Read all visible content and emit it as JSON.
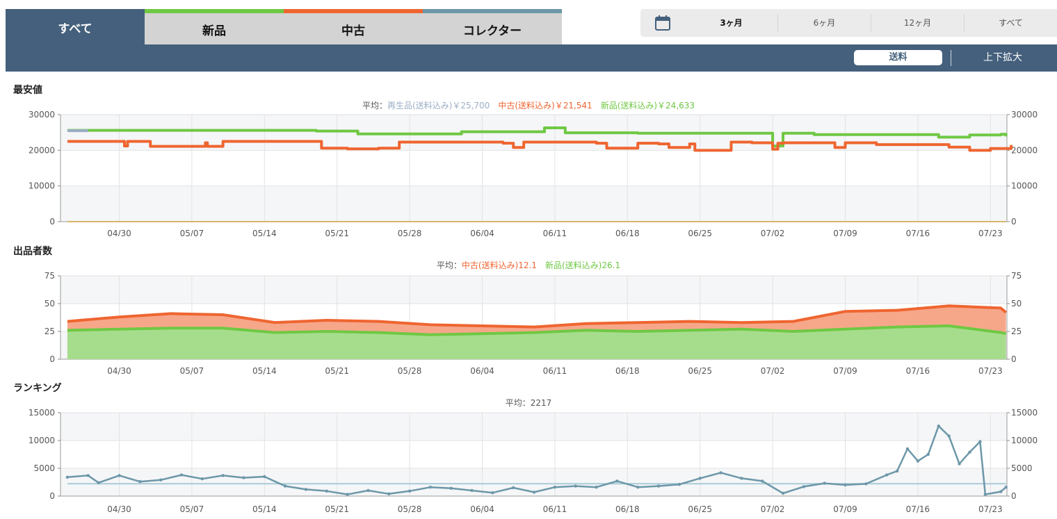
{
  "tabs": [
    {
      "label": "すべて",
      "active": true,
      "color": "#44607c"
    },
    {
      "label": "新品",
      "active": false,
      "color": "#6fc843"
    },
    {
      "label": "中古",
      "active": false,
      "color": "#ef6530"
    },
    {
      "label": "コレクター",
      "active": false,
      "color": "#6c97a8"
    }
  ],
  "range": {
    "icon": "calendar-icon",
    "options": [
      "3ヶ月",
      "6ヶ月",
      "12ヶ月",
      "すべて"
    ],
    "selected": "3ヶ月"
  },
  "toolbar": {
    "shipping_label": "送料",
    "zoom_label": "上下拡大"
  },
  "colors": {
    "new": "#6fc843",
    "used": "#ef6530",
    "refurb": "#9aaec4",
    "rank": "#6c97a8",
    "band": "#44607c"
  },
  "chart_data": [
    {
      "type": "line",
      "title": "最安値",
      "avg_prefix": "平均：",
      "legend": [
        {
          "text": "再生品(送料込み)￥25,700",
          "color": "#9aaec4"
        },
        {
          "text": "中古(送料込み)￥21,541",
          "color": "#ef6530"
        },
        {
          "text": "新品(送料込み)￥24,633",
          "color": "#6fc843"
        }
      ],
      "ylim": [
        0,
        30000
      ],
      "yticks": [
        0,
        10000,
        20000,
        30000
      ],
      "xticks": [
        "04/30",
        "05/07",
        "05/14",
        "05/21",
        "05/28",
        "06/04",
        "06/11",
        "06/18",
        "06/25",
        "07/02",
        "07/09",
        "07/16",
        "07/23"
      ],
      "xrange": [
        -5,
        85.5
      ],
      "series": [
        {
          "key": "new",
          "step": true,
          "points": [
            [
              -5,
              25600
            ],
            [
              11,
              25600
            ],
            [
              19,
              25400
            ],
            [
              23,
              24600
            ],
            [
              33,
              25200
            ],
            [
              41,
              26300
            ],
            [
              43,
              24900
            ],
            [
              50,
              24800
            ],
            [
              62,
              24800
            ],
            [
              63,
              21200
            ],
            [
              64,
              24800
            ],
            [
              67,
              24400
            ],
            [
              78,
              24400
            ],
            [
              79,
              23700
            ],
            [
              82,
              24300
            ],
            [
              85,
              24500
            ],
            [
              85.5,
              23900
            ]
          ]
        },
        {
          "key": "used",
          "step": true,
          "points": [
            [
              -5,
              22500
            ],
            [
              0,
              22500
            ],
            [
              0.5,
              21200
            ],
            [
              0.8,
              22500
            ],
            [
              2,
              22500
            ],
            [
              3,
              21100
            ],
            [
              8,
              21100
            ],
            [
              8.3,
              22100
            ],
            [
              8.5,
              21100
            ],
            [
              9,
              21100
            ],
            [
              10,
              22500
            ],
            [
              19,
              22500
            ],
            [
              19.5,
              20600
            ],
            [
              22,
              20400
            ],
            [
              25,
              20600
            ],
            [
              27,
              22300
            ],
            [
              37,
              22000
            ],
            [
              38,
              20800
            ],
            [
              39,
              22300
            ],
            [
              46,
              22000
            ],
            [
              47,
              20600
            ],
            [
              49,
              20600
            ],
            [
              50,
              22000
            ],
            [
              52,
              21800
            ],
            [
              53,
              20800
            ],
            [
              55,
              21800
            ],
            [
              55.5,
              20000
            ],
            [
              58,
              20000
            ],
            [
              59,
              22300
            ],
            [
              61,
              22100
            ],
            [
              63,
              20300
            ],
            [
              63.5,
              22000
            ],
            [
              64,
              22100
            ],
            [
              68,
              22100
            ],
            [
              69,
              20800
            ],
            [
              70,
              22100
            ],
            [
              73,
              21600
            ],
            [
              79,
              21600
            ],
            [
              80,
              20900
            ],
            [
              82,
              20000
            ],
            [
              84,
              20500
            ],
            [
              85.5,
              20500
            ],
            [
              86,
              21500
            ]
          ]
        },
        {
          "key": "refurb",
          "step": true,
          "points": [
            [
              -5,
              25500
            ],
            [
              -3,
              25500
            ]
          ]
        }
      ]
    },
    {
      "type": "area",
      "title": "出品者数",
      "avg_prefix": "平均：",
      "legend": [
        {
          "text": "中古(送料込み)12.1",
          "color": "#ef6530"
        },
        {
          "text": "新品(送料込み)26.1",
          "color": "#6fc843"
        }
      ],
      "ylim": [
        0,
        75
      ],
      "yticks": [
        0,
        25,
        50,
        75
      ],
      "xticks": [
        "04/30",
        "05/07",
        "05/14",
        "05/21",
        "05/28",
        "06/04",
        "06/11",
        "06/18",
        "06/25",
        "07/02",
        "07/09",
        "07/16",
        "07/23"
      ],
      "xrange": [
        -5,
        85.5
      ],
      "series": [
        {
          "key": "new",
          "points": [
            [
              -5,
              26
            ],
            [
              0,
              27
            ],
            [
              5,
              28
            ],
            [
              10,
              28
            ],
            [
              15,
              24
            ],
            [
              20,
              25
            ],
            [
              25,
              24
            ],
            [
              30,
              22
            ],
            [
              35,
              23
            ],
            [
              40,
              24
            ],
            [
              45,
              26
            ],
            [
              50,
              25
            ],
            [
              55,
              26
            ],
            [
              60,
              27
            ],
            [
              65,
              25
            ],
            [
              70,
              27
            ],
            [
              75,
              29
            ],
            [
              80,
              30
            ],
            [
              85,
              24
            ],
            [
              85.5,
              23
            ]
          ]
        },
        {
          "key": "used",
          "points": [
            [
              -5,
              34
            ],
            [
              0,
              38
            ],
            [
              5,
              41
            ],
            [
              10,
              40
            ],
            [
              15,
              33
            ],
            [
              20,
              35
            ],
            [
              25,
              34
            ],
            [
              30,
              31
            ],
            [
              35,
              30
            ],
            [
              40,
              29
            ],
            [
              45,
              32
            ],
            [
              50,
              33
            ],
            [
              55,
              34
            ],
            [
              60,
              33
            ],
            [
              65,
              34
            ],
            [
              70,
              43
            ],
            [
              75,
              44
            ],
            [
              80,
              48
            ],
            [
              85,
              46
            ],
            [
              85.5,
              42
            ]
          ]
        }
      ]
    },
    {
      "type": "line",
      "title": "ランキング",
      "avg_prefix": "平均：",
      "legend": [
        {
          "text": "2217",
          "color": "#555555"
        }
      ],
      "average": 2217,
      "ylim": [
        0,
        15000
      ],
      "yticks": [
        0,
        5000,
        10000,
        15000
      ],
      "xticks": [
        "04/30",
        "05/07",
        "05/14",
        "05/21",
        "05/28",
        "06/04",
        "06/11",
        "06/18",
        "06/25",
        "07/02",
        "07/09",
        "07/16",
        "07/23"
      ],
      "xrange": [
        -5,
        85.5
      ],
      "series": [
        {
          "key": "rank",
          "points": [
            [
              -5,
              3400
            ],
            [
              -3,
              3700
            ],
            [
              -2,
              2400
            ],
            [
              0,
              3700
            ],
            [
              2,
              2600
            ],
            [
              4,
              2900
            ],
            [
              6,
              3800
            ],
            [
              8,
              3100
            ],
            [
              10,
              3700
            ],
            [
              12,
              3300
            ],
            [
              14,
              3500
            ],
            [
              16,
              1800
            ],
            [
              18,
              1200
            ],
            [
              20,
              900
            ],
            [
              22,
              300
            ],
            [
              24,
              1000
            ],
            [
              26,
              400
            ],
            [
              28,
              900
            ],
            [
              30,
              1600
            ],
            [
              32,
              1400
            ],
            [
              34,
              1000
            ],
            [
              36,
              600
            ],
            [
              38,
              1500
            ],
            [
              40,
              700
            ],
            [
              42,
              1600
            ],
            [
              44,
              1800
            ],
            [
              46,
              1600
            ],
            [
              48,
              2700
            ],
            [
              50,
              1600
            ],
            [
              52,
              1800
            ],
            [
              54,
              2100
            ],
            [
              56,
              3200
            ],
            [
              58,
              4200
            ],
            [
              60,
              3200
            ],
            [
              62,
              2700
            ],
            [
              64,
              500
            ],
            [
              66,
              1700
            ],
            [
              68,
              2300
            ],
            [
              70,
              2000
            ],
            [
              72,
              2200
            ],
            [
              74,
              3800
            ],
            [
              75,
              4500
            ],
            [
              76,
              8500
            ],
            [
              77,
              6300
            ],
            [
              78,
              7500
            ],
            [
              79,
              12600
            ],
            [
              80,
              10800
            ],
            [
              81,
              5800
            ],
            [
              82,
              7900
            ],
            [
              83,
              9800
            ],
            [
              83.5,
              300
            ],
            [
              85,
              800
            ],
            [
              85.5,
              1600
            ]
          ]
        }
      ]
    }
  ]
}
